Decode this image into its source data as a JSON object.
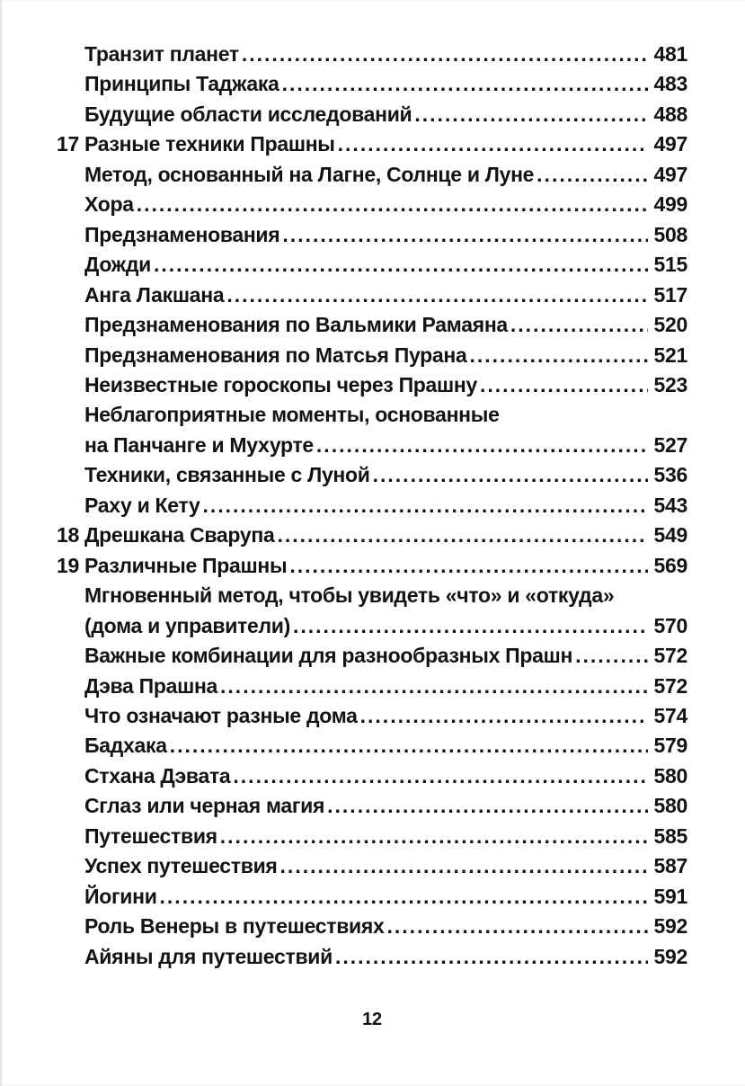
{
  "colors": {
    "text": "#131313",
    "background": "#ffffff"
  },
  "page": {
    "footer_page_number": "12"
  },
  "toc": {
    "entries": [
      {
        "num": "",
        "label": "Транзит планет",
        "page": "481"
      },
      {
        "num": "",
        "label": "Принципы Таджака",
        "page": "483"
      },
      {
        "num": "",
        "label": "Будущие области исследований",
        "page": "488"
      },
      {
        "num": "17",
        "label": "Разные техники Прашны",
        "page": "497"
      },
      {
        "num": "",
        "label": "Метод, основанный на Лагне, Солнце и Луне",
        "page": "497"
      },
      {
        "num": "",
        "label": "Хора",
        "page": "499"
      },
      {
        "num": "",
        "label": "Предзнаменования",
        "page": "508"
      },
      {
        "num": "",
        "label": "Дожди",
        "page": "515"
      },
      {
        "num": "",
        "label": "Анга Лакшана",
        "page": "517"
      },
      {
        "num": "",
        "label": "Предзнаменования по Вальмики Рамаяна",
        "page": "520"
      },
      {
        "num": "",
        "label": "Предзнаменования по Матсья Пурана",
        "page": "521"
      },
      {
        "num": "",
        "label": "Неизвестные гороскопы через Прашну",
        "page": "523"
      },
      {
        "num": "",
        "label": "Неблагоприятные моменты, основанные",
        "page": ""
      },
      {
        "num": "",
        "label": "на Панчанге и Мухурте",
        "page": "527"
      },
      {
        "num": "",
        "label": "Техники, связанные с Луной",
        "page": "536"
      },
      {
        "num": "",
        "label": "Раху и Кету",
        "page": "543"
      },
      {
        "num": "18",
        "label": "Дрешкана Сварупа",
        "page": "549"
      },
      {
        "num": "19",
        "label": "Различные Прашны",
        "page": "569"
      },
      {
        "num": "",
        "label": "Мгновенный метод, чтобы увидеть «что» и «откуда»",
        "page": ""
      },
      {
        "num": "",
        "label": "(дома и управители)",
        "page": "570"
      },
      {
        "num": "",
        "label": "Важные комбинации для разнообразных Прашн",
        "page": "572"
      },
      {
        "num": "",
        "label": "Дэва Прашна",
        "page": "572"
      },
      {
        "num": "",
        "label": "Что означают разные дома",
        "page": "574"
      },
      {
        "num": "",
        "label": "Бадхака",
        "page": "579"
      },
      {
        "num": "",
        "label": "Стхана Дэвата",
        "page": "580"
      },
      {
        "num": "",
        "label": "Сглаз или черная магия",
        "page": "580"
      },
      {
        "num": "",
        "label": "Путешествия",
        "page": "585"
      },
      {
        "num": "",
        "label": "Успех путешествия",
        "page": "587"
      },
      {
        "num": "",
        "label": "Йогини",
        "page": "591"
      },
      {
        "num": "",
        "label": "Роль Венеры в путешествиях",
        "page": "592"
      },
      {
        "num": "",
        "label": "Айяны для путешествий",
        "page": "592"
      }
    ]
  }
}
